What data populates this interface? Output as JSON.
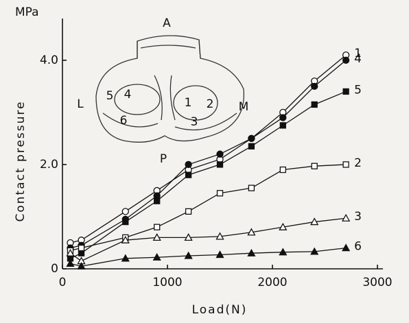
{
  "chart_data": {
    "type": "line",
    "y_unit": "MPa",
    "ylabel": "Contact pressure",
    "xlabel": "Load(N)",
    "x": [
      75,
      180,
      600,
      900,
      1200,
      1500,
      1800,
      2100,
      2400,
      2700
    ],
    "xlim": [
      0,
      3000
    ],
    "xticks": [
      0,
      1000,
      2000,
      3000
    ],
    "ylim": [
      0,
      4.8
    ],
    "yticks": [
      0,
      {
        "value": 2,
        "label": "2.0"
      },
      {
        "value": 4,
        "label": "4.0"
      }
    ],
    "series": [
      {
        "name": "1",
        "color": "#111111",
        "marker": "circle-open",
        "values": [
          0.5,
          0.55,
          1.1,
          1.5,
          1.9,
          2.1,
          2.5,
          3.0,
          3.6,
          4.1
        ]
      },
      {
        "name": "4",
        "color": "#111111",
        "marker": "circle-filled",
        "values": [
          0.4,
          0.45,
          0.95,
          1.4,
          2.0,
          2.2,
          2.5,
          2.9,
          3.5,
          4.0
        ]
      },
      {
        "name": "5",
        "color": "#111111",
        "marker": "square-filled",
        "values": [
          0.2,
          0.3,
          0.9,
          1.3,
          1.8,
          2.0,
          2.35,
          2.75,
          3.15,
          3.4
        ]
      },
      {
        "name": "2",
        "color": "#111111",
        "marker": "square-open",
        "values": [
          0.35,
          0.4,
          0.6,
          0.8,
          1.1,
          1.45,
          1.55,
          1.9,
          1.97,
          2.0
        ]
      },
      {
        "name": "3",
        "color": "#111111",
        "marker": "triangle-open",
        "values": [
          0.3,
          0.15,
          0.55,
          0.6,
          0.6,
          0.62,
          0.7,
          0.8,
          0.9,
          0.97
        ]
      },
      {
        "name": "6",
        "color": "#111111",
        "marker": "triangle-filled",
        "values": [
          0.1,
          0.05,
          0.2,
          0.22,
          0.25,
          0.27,
          0.3,
          0.32,
          0.33,
          0.4
        ]
      }
    ],
    "inset_labels": [
      "A",
      "L",
      "M",
      "P",
      "5",
      "4",
      "1",
      "2",
      "6",
      "3"
    ]
  }
}
